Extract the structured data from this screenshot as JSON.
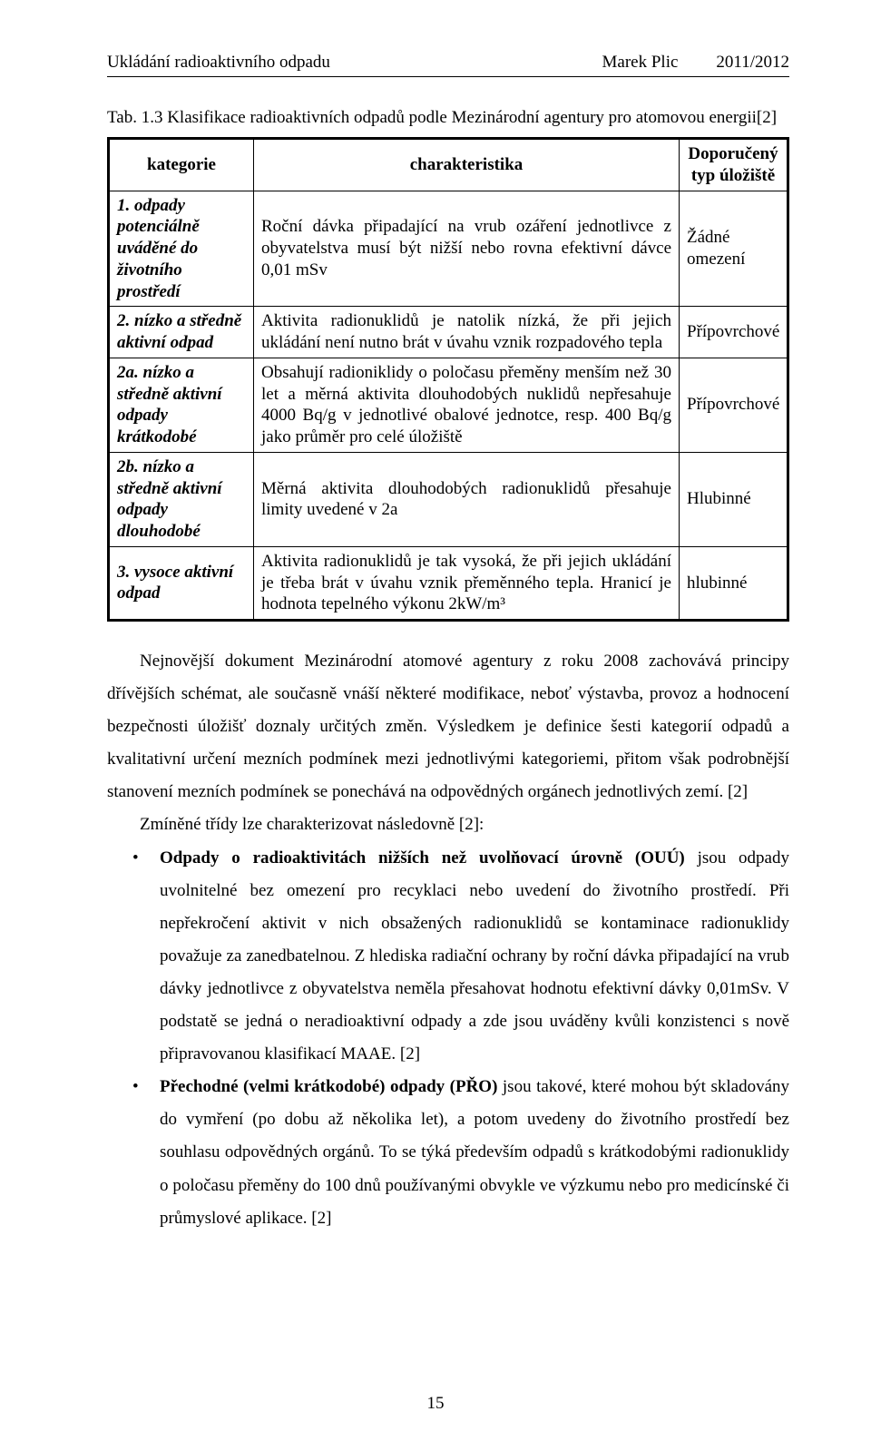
{
  "header": {
    "title_left": "Ukládání radioaktivního odpadu",
    "author": "Marek Plic",
    "year": "2011/2012"
  },
  "table": {
    "caption": "Tab. 1.3 Klasifikace radioaktivních odpadů podle Mezinárodní agentury pro atomovou energii[2]",
    "columns": [
      "kategorie",
      "charakteristika",
      "Doporučený typ úložiště"
    ],
    "rows": [
      {
        "cat": "1. odpady potenciálně uváděné do životního prostředí",
        "char": "Roční dávka připadající na vrub ozáření jednotlivce z obyvatelstva musí být nižší nebo rovna efektivní dávce 0,01 mSv",
        "typ": "Žádné omezení"
      },
      {
        "cat": "2. nízko a středně aktivní odpad",
        "char": "Aktivita radionuklidů je natolik nízká, že při jejich ukládání není nutno brát v úvahu vznik rozpadového tepla",
        "typ": "Přípovrchové"
      },
      {
        "cat": "2a. nízko a středně aktivní odpady krátkodobé",
        "char": "Obsahují radioniklidy o poločasu přeměny menším než 30 let a měrná aktivita dlouhodobých nuklidů nepřesahuje 4000 Bq/g v jednotlivé obalové jednotce, resp. 400 Bq/g jako průměr pro celé úložiště",
        "typ": "Přípovrchové"
      },
      {
        "cat": "2b. nízko a středně aktivní odpady dlouhodobé",
        "char": "Měrná aktivita dlouhodobých radionuklidů přesahuje limity uvedené v 2a",
        "typ": "Hlubinné"
      },
      {
        "cat": "3. vysoce aktivní odpad",
        "char": "Aktivita radionuklidů je tak vysoká, že při jejich ukládání je třeba brát v úvahu vznik přeměnného tepla. Hranicí je hodnota tepelného výkonu 2kW/m³",
        "typ": "hlubinné"
      }
    ]
  },
  "paragraphs": {
    "p1": "Nejnovější dokument Mezinárodní atomové agentury z roku 2008 zachovává principy dřívějších schémat, ale současně vnáší některé modifikace, neboť výstavba, provoz a hodnocení bezpečnosti úložišť doznaly určitých změn. Výsledkem je definice šesti kategorií odpadů a kvalitativní určení mezních podmínek mezi jednotlivými kategoriemi, přitom však podrobnější stanovení mezních podmínek se ponechává na odpovědných orgánech jednotlivých zemí. [2]",
    "p2": "Zmíněné třídy lze charakterizovat následovně [2]:",
    "b1_strong": "Odpady o radioaktivitách nižších než uvolňovací úrovně (OUÚ)",
    "b1_rest": " jsou odpady uvolnitelné bez omezení pro recyklaci nebo uvedení do životního prostředí. Při nepřekročení aktivit v nich obsažených radionuklidů se kontaminace radionuklidy považuje za zanedbatelnou. Z hlediska radiační ochrany by roční dávka připadající na vrub dávky jednotlivce z obyvatelstva neměla přesahovat hodnotu efektivní dávky 0,01mSv. V podstatě se jedná o neradioaktivní odpady a zde jsou uváděny kvůli konzistenci s nově připravovanou klasifikací MAAE. [2]",
    "b2_strong": "Přechodné (velmi krátkodobé) odpady (PŘO)",
    "b2_rest": " jsou takové, které mohou být skladovány do vymření (po dobu až několika let), a potom uvedeny do životního prostředí bez souhlasu odpovědných orgánů. To se týká především odpadů s krátkodobými radionuklidy o poločasu přeměny do 100 dnů používanými obvykle ve výzkumu nebo pro medicínské či průmyslové aplikace. [2]"
  },
  "page_number": "15"
}
